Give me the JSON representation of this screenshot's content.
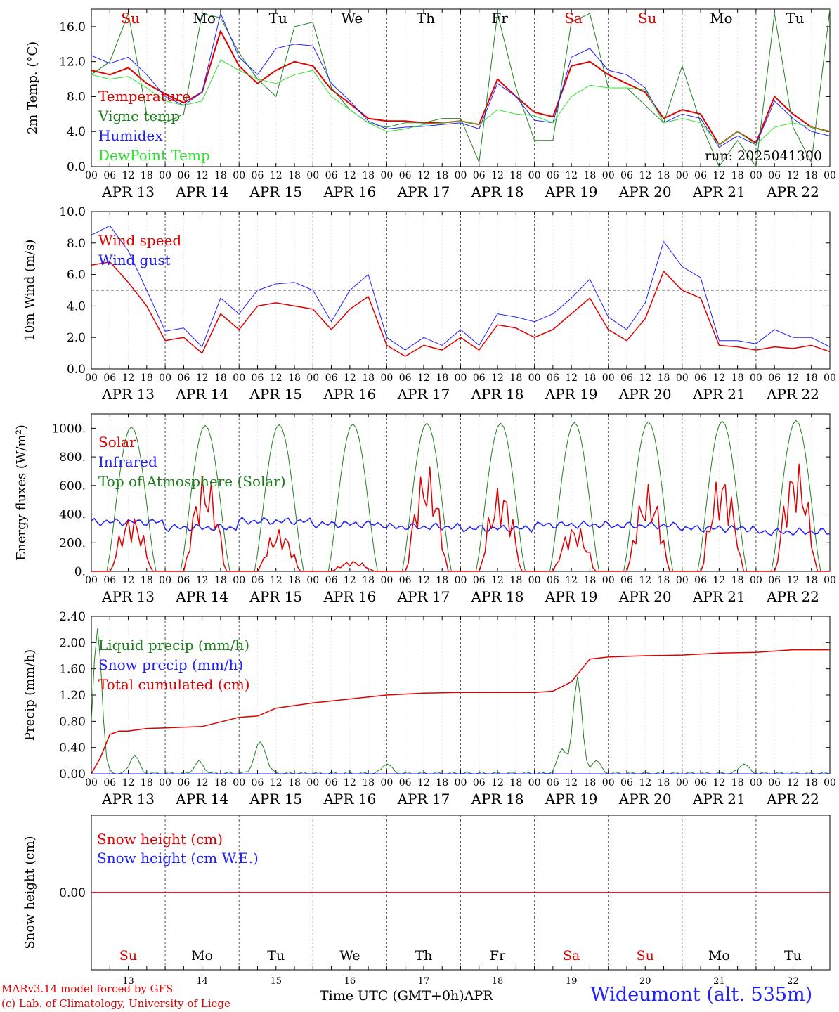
{
  "header": {
    "run": "run: 2025041300"
  },
  "footer": {
    "model": "MARv3.14 model forced by GFS",
    "lab": "(c) Lab. of Climatology, University of Liege",
    "time_label": "Time UTC (GMT+0h)",
    "month": "APR",
    "station": "Wideumont (alt. 535m)"
  },
  "days": [
    "APR 13",
    "APR 14",
    "APR 15",
    "APR 16",
    "APR 17",
    "APR 18",
    "APR 19",
    "APR 20",
    "APR 21",
    "APR 22"
  ],
  "weekdays": [
    "Su",
    "Mo",
    "Tu",
    "We",
    "Th",
    "Fr",
    "Sa",
    "Su",
    "Mo",
    "Tu"
  ],
  "weekday_colors": [
    "#e00000",
    "#000000",
    "#000000",
    "#000000",
    "#000000",
    "#000000",
    "#e00000",
    "#e00000",
    "#000000",
    "#000000"
  ],
  "day_numbers": [
    "13",
    "14",
    "15",
    "16",
    "17",
    "18",
    "19",
    "20",
    "21",
    "22"
  ],
  "hour_ticks": [
    "00",
    "06",
    "12",
    "18"
  ],
  "final_tick": "00",
  "chart_data": [
    {
      "type": "line",
      "ylabel": "2m Temp. (°C)",
      "ylim": [
        0,
        18
      ],
      "yticks": [
        "0.0",
        "4.0",
        "8.0",
        "12.0",
        "16.0"
      ],
      "x_hours_from_apr13_00": [
        0,
        6,
        12,
        18,
        24,
        30,
        36,
        42,
        48,
        54,
        60,
        66,
        72,
        78,
        84,
        90,
        96,
        102,
        108,
        114,
        120,
        126,
        132,
        138,
        144,
        150,
        156,
        162,
        168,
        174,
        180,
        186,
        192,
        198,
        204,
        210,
        216,
        222,
        228,
        234,
        240
      ],
      "series": [
        {
          "name": "Temperature",
          "color": "#e00000",
          "width": 2,
          "values": [
            11.0,
            10.5,
            11.3,
            9.5,
            8.3,
            7.3,
            8.5,
            15.5,
            11.5,
            9.5,
            11.0,
            12.0,
            11.5,
            8.8,
            7.2,
            5.5,
            5.2,
            5.2,
            5.0,
            5.0,
            5.2,
            4.8,
            10.0,
            8.0,
            6.2,
            5.7,
            11.5,
            12.0,
            10.5,
            9.5,
            8.5,
            5.5,
            6.5,
            6.0,
            2.5,
            4.0,
            2.7,
            8.0,
            6.0,
            4.5,
            4.0
          ]
        },
        {
          "name": "Vigne temp",
          "color": "#208020",
          "width": 1,
          "values": [
            10.5,
            12.0,
            17.5,
            6.0,
            5.0,
            6.0,
            17.5,
            17.0,
            13.0,
            10.0,
            8.0,
            16.0,
            16.5,
            9.0,
            6.5,
            5.0,
            4.5,
            5.0,
            5.0,
            5.5,
            5.5,
            0.5,
            17.5,
            9.0,
            3.0,
            3.0,
            16.5,
            17.5,
            9.0,
            9.0,
            7.0,
            5.0,
            11.5,
            5.0,
            0.0,
            3.0,
            0.0,
            17.5,
            4.5,
            0.5,
            18.0
          ]
        },
        {
          "name": "Humidex",
          "color": "#2020ff",
          "width": 1,
          "values": [
            12.7,
            11.8,
            12.5,
            10.5,
            8.0,
            7.0,
            8.5,
            17.5,
            12.5,
            10.5,
            13.5,
            14.0,
            13.8,
            9.5,
            7.5,
            5.2,
            4.3,
            4.5,
            4.6,
            4.8,
            5.0,
            4.3,
            9.5,
            8.0,
            5.3,
            5.0,
            12.5,
            13.5,
            11.0,
            10.5,
            9.0,
            5.0,
            6.0,
            5.5,
            2.2,
            3.5,
            2.5,
            7.5,
            5.5,
            4.0,
            3.5
          ]
        },
        {
          "name": "DewPoint Temp",
          "color": "#30e030",
          "width": 1,
          "values": [
            10.5,
            10.0,
            10.3,
            9.0,
            7.5,
            7.0,
            7.5,
            12.2,
            11.0,
            10.0,
            9.5,
            10.5,
            11.0,
            8.0,
            6.5,
            5.0,
            4.0,
            4.3,
            4.8,
            5.0,
            5.2,
            4.8,
            6.5,
            6.0,
            5.8,
            5.0,
            8.0,
            9.3,
            9.0,
            9.0,
            8.8,
            5.0,
            5.5,
            5.0,
            2.5,
            4.0,
            2.5,
            4.5,
            5.0,
            4.5,
            4.0
          ]
        }
      ]
    },
    {
      "type": "line",
      "ylabel": "10m Wind (m/s)",
      "ylim": [
        0,
        10
      ],
      "yticks": [
        "0.0",
        "2.0",
        "4.0",
        "6.0",
        "8.0",
        "10.0"
      ],
      "reference_line": 5.0,
      "x_hours_from_apr13_00": [
        0,
        6,
        12,
        18,
        24,
        30,
        36,
        42,
        48,
        54,
        60,
        66,
        72,
        78,
        84,
        90,
        96,
        102,
        108,
        114,
        120,
        126,
        132,
        138,
        144,
        150,
        156,
        162,
        168,
        174,
        180,
        186,
        192,
        198,
        204,
        210,
        216,
        222,
        228,
        234,
        240
      ],
      "series": [
        {
          "name": "Wind speed",
          "color": "#e00000",
          "width": 1.5,
          "values": [
            6.6,
            6.8,
            5.5,
            4.0,
            1.8,
            2.0,
            1.0,
            3.5,
            2.5,
            4.0,
            4.2,
            4.0,
            3.8,
            2.5,
            3.8,
            4.6,
            1.5,
            0.8,
            1.5,
            1.2,
            2.0,
            1.2,
            2.8,
            2.6,
            2.0,
            2.5,
            3.5,
            4.5,
            2.5,
            1.8,
            3.2,
            6.2,
            5.0,
            4.5,
            1.5,
            1.4,
            1.2,
            1.4,
            1.3,
            1.5,
            1.1
          ]
        },
        {
          "name": "Wind gust",
          "color": "#2020ff",
          "width": 1,
          "values": [
            8.5,
            9.1,
            7.5,
            5.0,
            2.4,
            2.6,
            1.4,
            4.5,
            3.5,
            5.0,
            5.4,
            5.5,
            5.0,
            3.0,
            5.0,
            6.0,
            2.0,
            1.2,
            2.0,
            1.5,
            2.5,
            1.5,
            3.5,
            3.3,
            3.0,
            3.5,
            4.5,
            5.7,
            3.3,
            2.5,
            4.2,
            8.1,
            6.5,
            5.8,
            1.8,
            1.8,
            1.6,
            2.5,
            2.0,
            2.0,
            1.4
          ]
        }
      ]
    },
    {
      "type": "line",
      "ylabel": "Energy fluxes (W/m²)",
      "ylim": [
        0,
        1100
      ],
      "yticks": [
        "0.",
        "200.",
        "400.",
        "600.",
        "800.",
        "1000."
      ],
      "series_names": [
        "Solar",
        "Infrared",
        "Top of Atmosphere (Solar)"
      ],
      "series_colors": [
        "#e00000",
        "#2020ff",
        "#208020"
      ],
      "toa_peak": [
        1010,
        1020,
        1025,
        1030,
        1035,
        1035,
        1040,
        1045,
        1050,
        1055
      ],
      "solar_peak": [
        405,
        690,
        300,
        75,
        750,
        610,
        330,
        610,
        700,
        780
      ],
      "infrared_mean": [
        345,
        305,
        350,
        330,
        310,
        300,
        325,
        320,
        300,
        275
      ]
    },
    {
      "type": "line",
      "ylabel": "Precip (mm/h)",
      "ylim": [
        0,
        2.4
      ],
      "yticks": [
        "0.00",
        "0.40",
        "0.80",
        "1.20",
        "1.60",
        "2.00",
        "2.40"
      ],
      "series_names": [
        "Liquid precip (mm/h)",
        "Snow precip (mm/h)",
        "Total cumulated (cm)"
      ],
      "series_colors": [
        "#208020",
        "#2020ff",
        "#e00000"
      ],
      "total_cumulated_x": [
        0,
        3,
        6,
        9,
        12,
        18,
        24,
        36,
        48,
        54,
        60,
        72,
        84,
        96,
        108,
        120,
        132,
        144,
        150,
        156,
        162,
        168,
        180,
        192,
        204,
        216,
        228,
        240
      ],
      "total_cumulated_y": [
        0.0,
        0.25,
        0.6,
        0.65,
        0.65,
        0.69,
        0.7,
        0.72,
        0.86,
        0.88,
        1.0,
        1.08,
        1.14,
        1.2,
        1.23,
        1.24,
        1.24,
        1.24,
        1.26,
        1.4,
        1.75,
        1.78,
        1.8,
        1.81,
        1.84,
        1.85,
        1.89,
        1.89
      ],
      "liquid_peaks_x": [
        2,
        14,
        35,
        54,
        56,
        96,
        153,
        158,
        164,
        212
      ],
      "liquid_peaks_y": [
        2.2,
        0.28,
        0.18,
        0.32,
        0.28,
        0.15,
        0.38,
        1.48,
        0.2,
        0.15
      ]
    },
    {
      "type": "line",
      "ylabel": "Snow height (cm)",
      "yticks": [
        "0.00"
      ],
      "series_names": [
        "Snow height (cm)",
        "Snow height (cm W.E.)"
      ],
      "series_colors": [
        "#e00000",
        "#2020ff"
      ],
      "values_constant": 0.0
    }
  ]
}
